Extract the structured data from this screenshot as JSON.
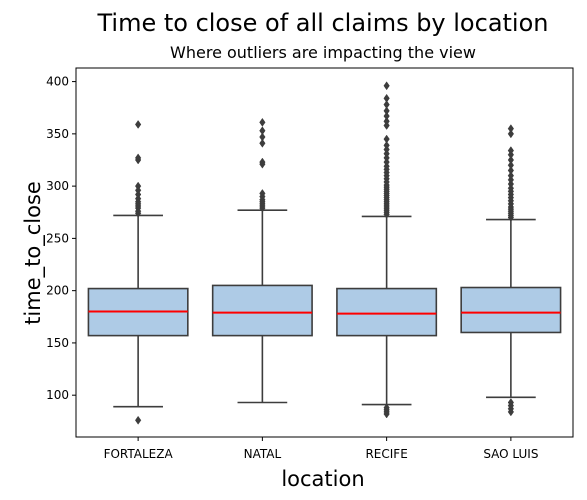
{
  "chart_data": {
    "type": "box",
    "title": "Time to close of all claims by location",
    "subtitle": "Where outliers are impacting the view",
    "xlabel": "location",
    "ylabel": "time_to_close",
    "ylim": [
      60,
      413
    ],
    "yticks": [
      100,
      150,
      200,
      250,
      300,
      350,
      400
    ],
    "categories": [
      "FORTALEZA",
      "NATAL",
      "RECIFE",
      "SAO LUIS"
    ],
    "boxes": [
      {
        "category": "FORTALEZA",
        "whisker_low": 89,
        "q1": 157,
        "median": 180,
        "q3": 202,
        "whisker_high": 272,
        "outliers": [
          76,
          274,
          276,
          279,
          281,
          283,
          285,
          288,
          292,
          296,
          300,
          325,
          327,
          359
        ]
      },
      {
        "category": "NATAL",
        "whisker_low": 93,
        "q1": 157,
        "median": 179,
        "q3": 205,
        "whisker_high": 277,
        "outliers": [
          279,
          281,
          283,
          285,
          287,
          290,
          293,
          321,
          323,
          341,
          347,
          353,
          361
        ]
      },
      {
        "category": "RECIFE",
        "whisker_low": 91,
        "q1": 157,
        "median": 178,
        "q3": 202,
        "whisker_high": 271,
        "outliers": [
          82,
          84,
          86,
          88,
          273,
          275,
          277,
          279,
          281,
          283,
          285,
          287,
          289,
          291,
          293,
          295,
          297,
          299,
          301,
          304,
          307,
          310,
          313,
          316,
          319,
          323,
          327,
          331,
          335,
          339,
          345,
          358,
          362,
          367,
          372,
          378,
          384,
          396
        ]
      },
      {
        "category": "SAO LUIS",
        "whisker_low": 98,
        "q1": 160,
        "median": 179,
        "q3": 203,
        "whisker_high": 268,
        "outliers": [
          84,
          87,
          90,
          93,
          270,
          272,
          274,
          276,
          278,
          280,
          283,
          286,
          289,
          292,
          295,
          298,
          302,
          306,
          310,
          315,
          320,
          325,
          330,
          334,
          350,
          355
        ]
      }
    ],
    "colors": {
      "box_fill": "#aecbe6",
      "box_edge": "#3d3d3d",
      "median": "#ff0000",
      "outlier": "#3d3d3d"
    }
  }
}
